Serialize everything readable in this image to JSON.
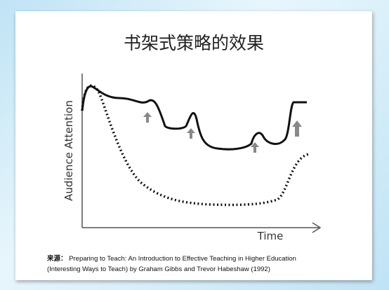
{
  "slide": {
    "title": "书架式策略的效果",
    "figure": {
      "y_label": "Audience Attention",
      "x_label": "Time"
    },
    "source": {
      "label": "来源：",
      "line1": "Preparing to Teach: An Introduction to Effective Teaching in Higher Education",
      "line2": "(Interesting Ways to Teach) by Graham Gibbs and Trevor Habeshaw (1992)"
    }
  }
}
